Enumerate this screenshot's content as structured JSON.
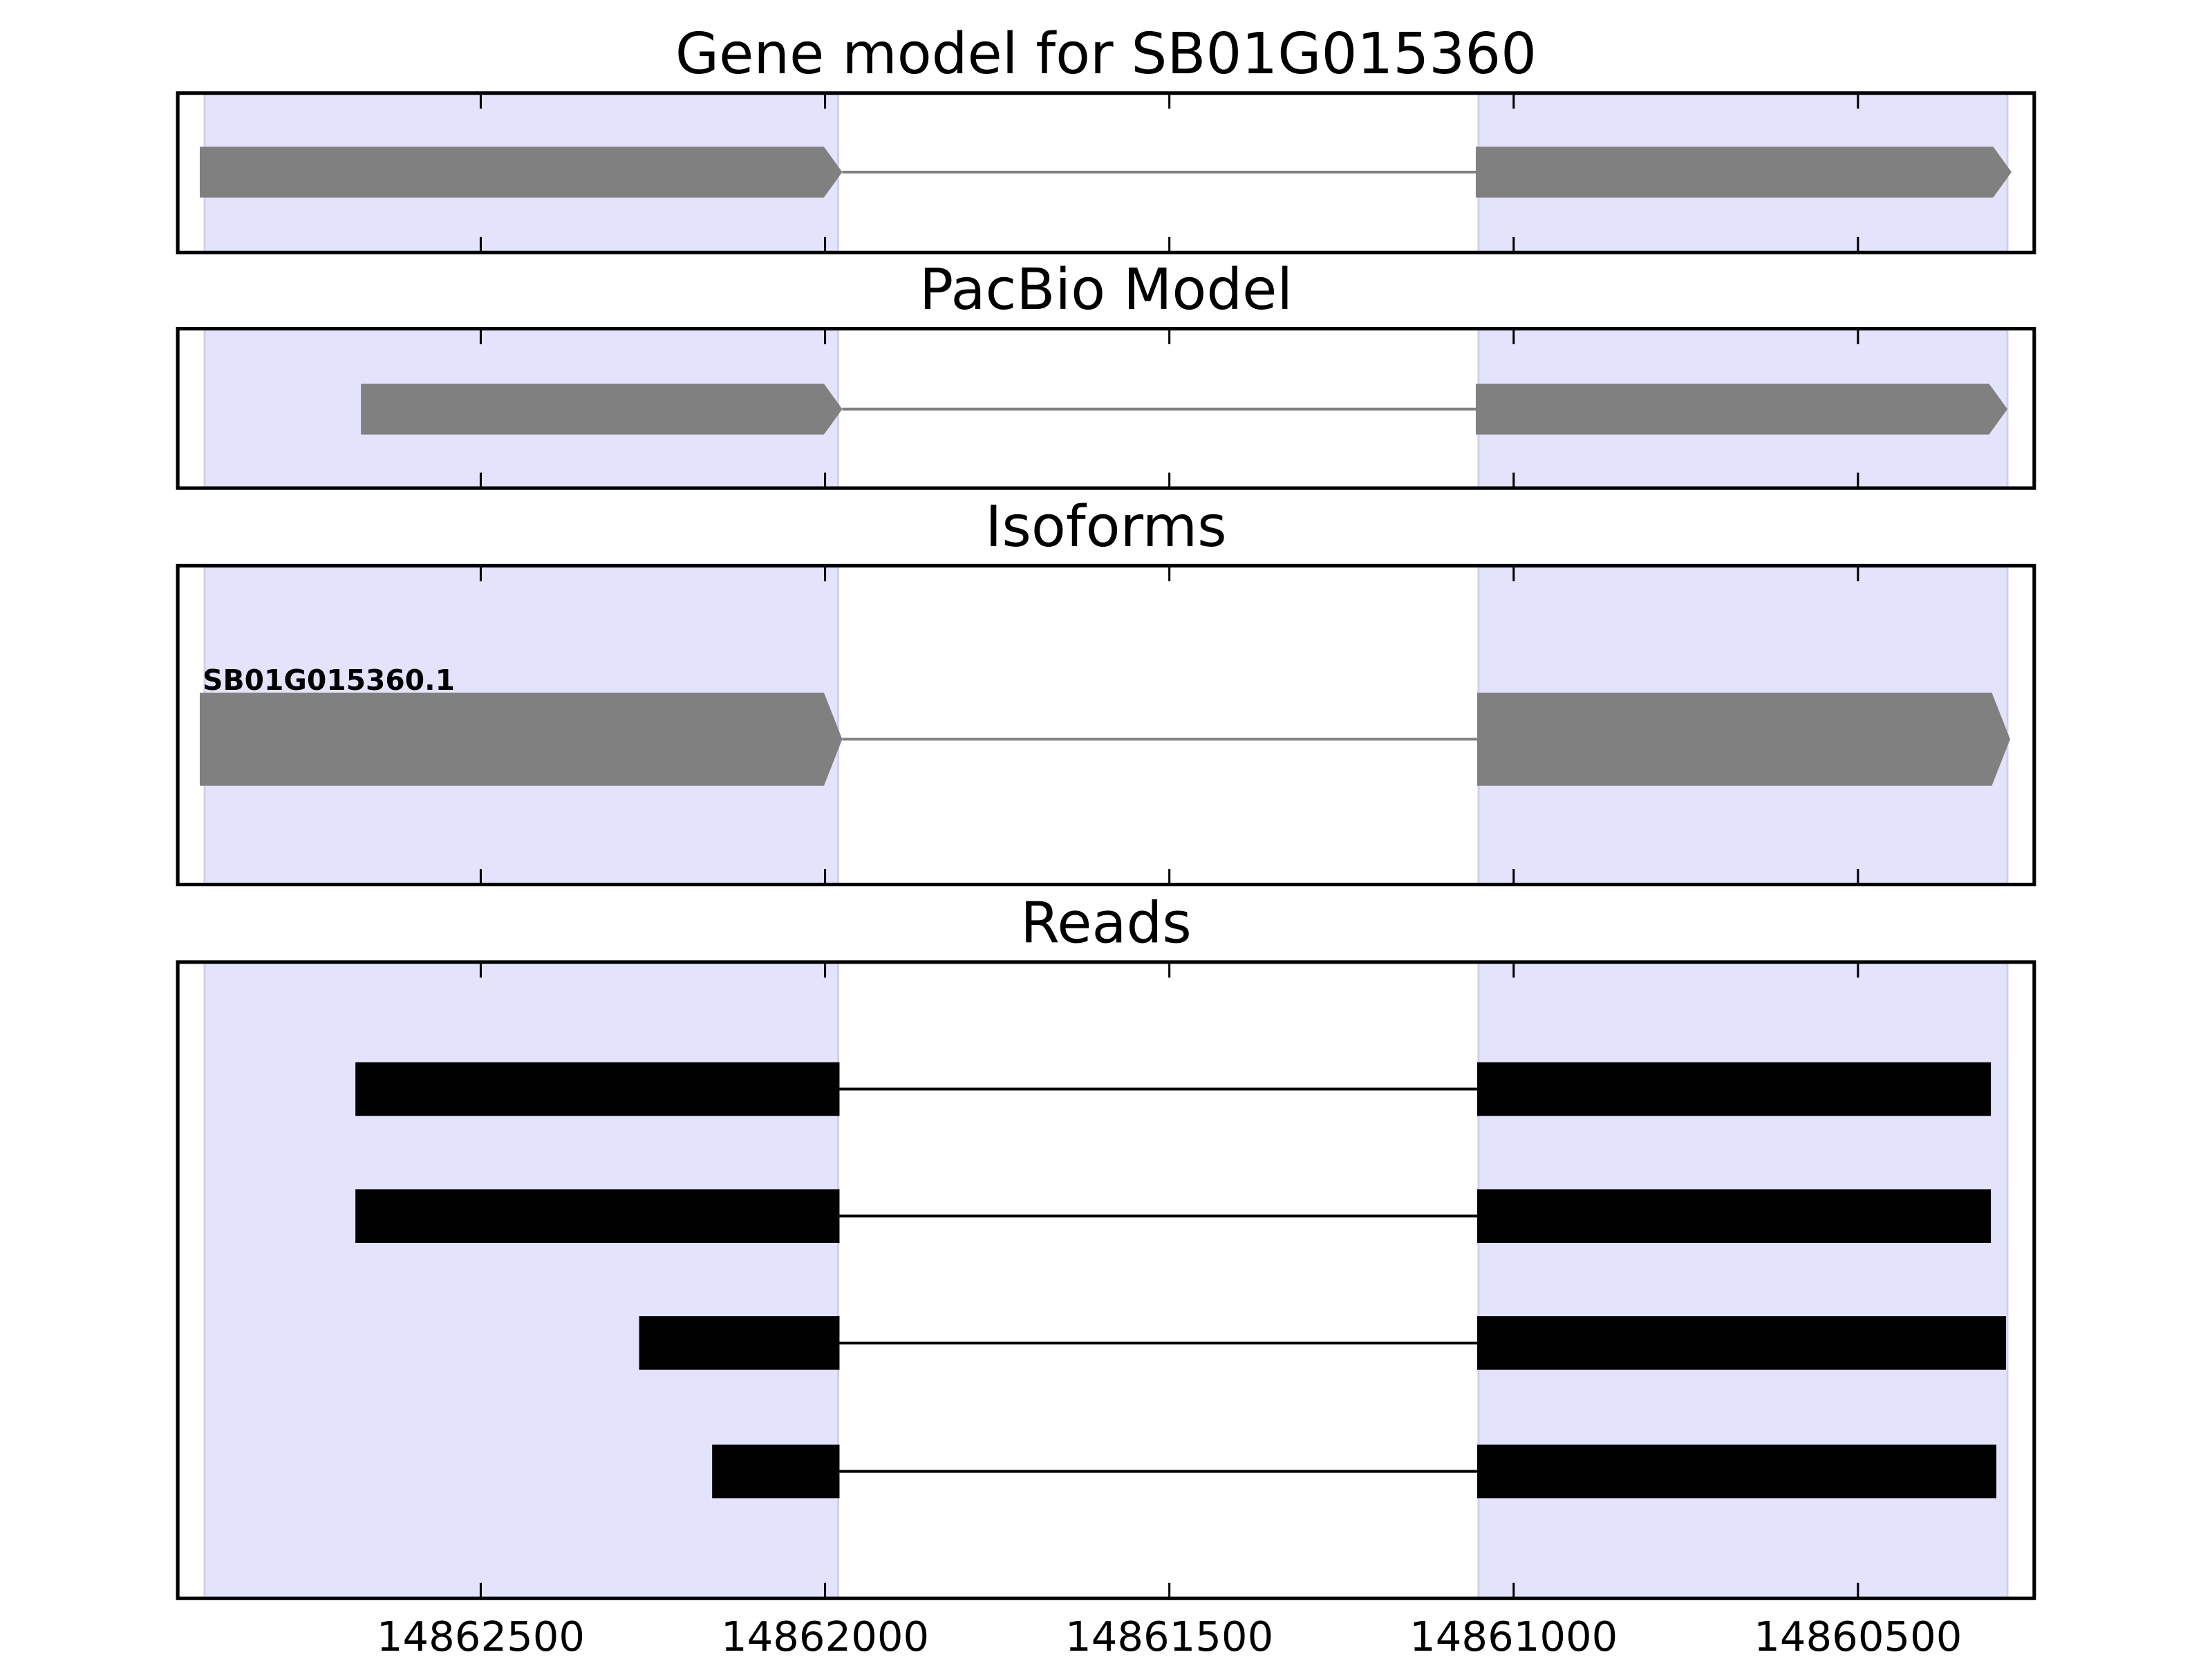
{
  "chart_data": {
    "type": "gene-structure",
    "xlim": [
      14862940,
      14860244
    ],
    "x_reversed": true,
    "x_ticks": [
      14862500,
      14862000,
      14861500,
      14861000,
      14860500
    ],
    "grid": false,
    "shade_color": "#e3e3fc",
    "exon_color": "#808080",
    "read_color": "#000000",
    "shaded_regions": [
      [
        14862901,
        14861981
      ],
      [
        14861051,
        14860283
      ]
    ],
    "panels": [
      {
        "title": "Gene model for SB01G015360",
        "style": "model",
        "tracks": [
          {
            "label": "",
            "exons": [
              [
                14862908,
                14861975
              ],
              [
                14861055,
                14860277
              ]
            ]
          }
        ]
      },
      {
        "title": "PacBio Model",
        "style": "model",
        "tracks": [
          {
            "label": "",
            "exons": [
              [
                14862674,
                14861975
              ],
              [
                14861055,
                14860283
              ]
            ]
          }
        ]
      },
      {
        "title": "Isoforms",
        "style": "model",
        "tracks": [
          {
            "label": "SB01G015360.1",
            "exons": [
              [
                14862908,
                14861975
              ],
              [
                14861053,
                14860279
              ]
            ]
          }
        ]
      },
      {
        "title": "Reads",
        "style": "read",
        "tracks": [
          {
            "label": "",
            "exons": [
              [
                14862682,
                14861979
              ],
              [
                14861053,
                14860307
              ]
            ]
          },
          {
            "label": "",
            "exons": [
              [
                14862682,
                14861979
              ],
              [
                14861053,
                14860307
              ]
            ]
          },
          {
            "label": "",
            "exons": [
              [
                14862270,
                14861979
              ],
              [
                14861053,
                14860285
              ]
            ]
          },
          {
            "label": "",
            "exons": [
              [
                14862164,
                14861979
              ],
              [
                14861053,
                14860299
              ]
            ]
          }
        ]
      }
    ]
  }
}
